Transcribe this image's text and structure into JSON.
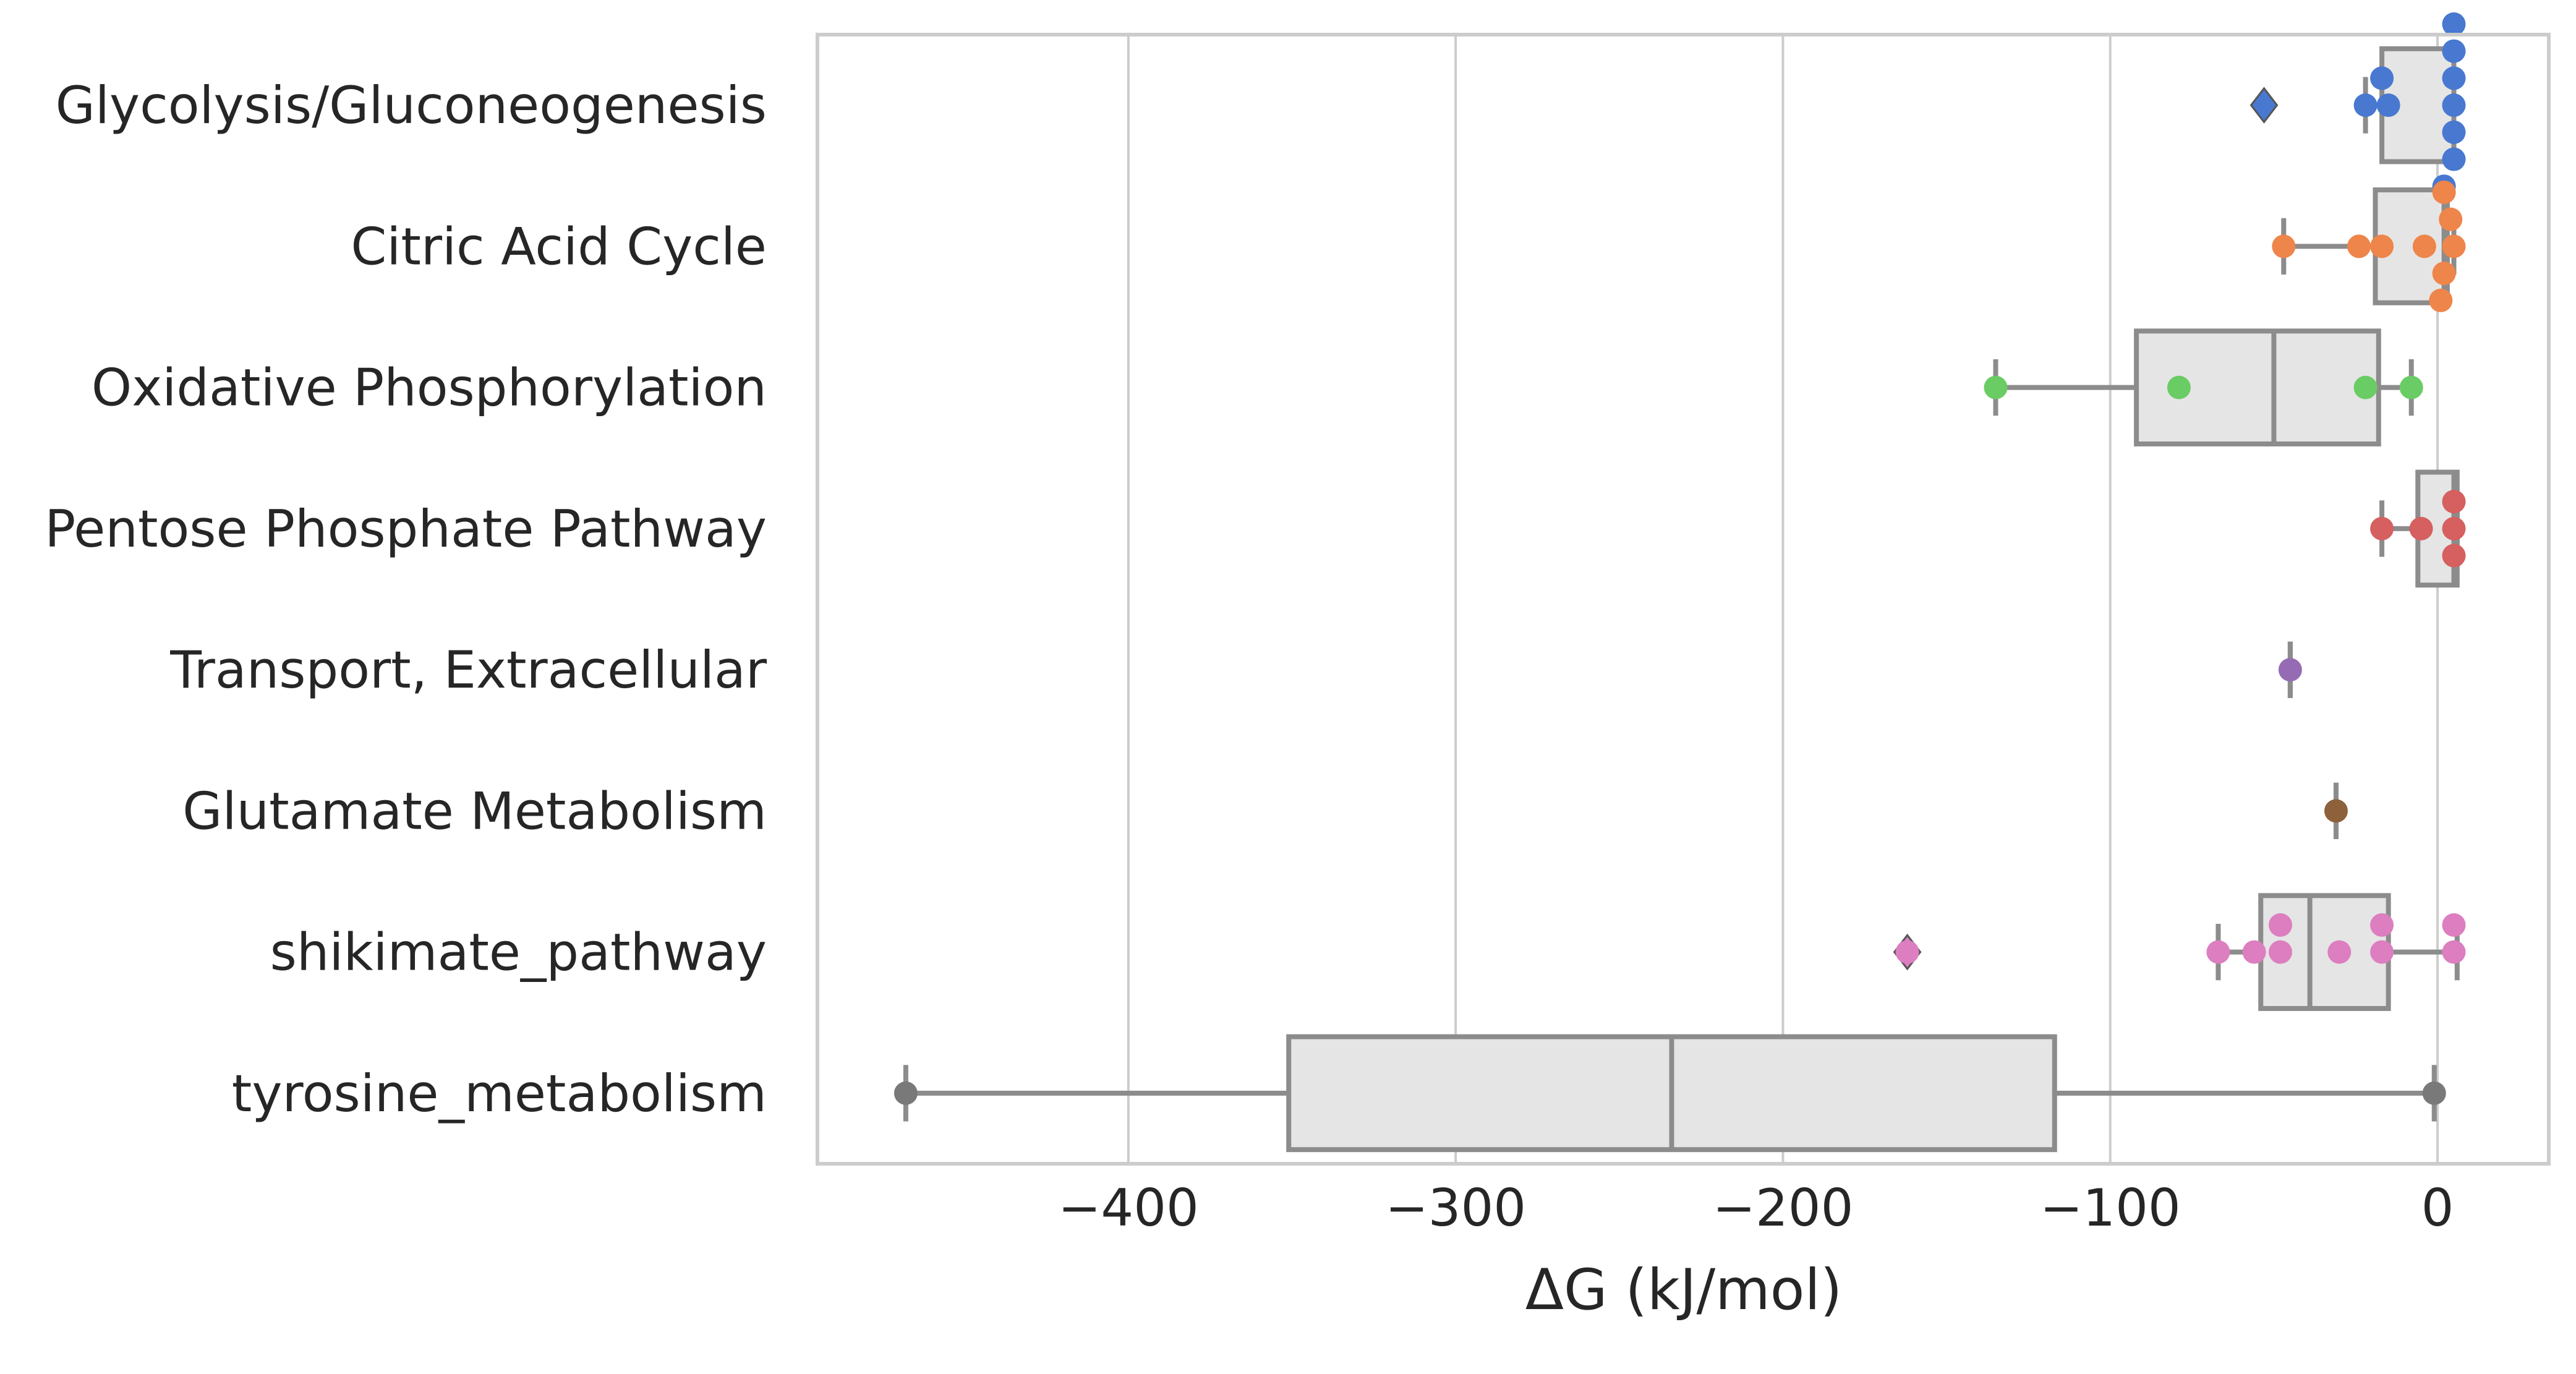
{
  "chart_data": {
    "type": "box",
    "xlabel": "ΔG (kJ/mol)",
    "xlim": [
      -495,
      34
    ],
    "xticks": [
      -400,
      -300,
      -200,
      -100,
      0
    ],
    "xtick_labels": [
      "−400",
      "−300",
      "−200",
      "−100",
      "0"
    ],
    "grid": "vertical",
    "box_fill": "#e5e5e5",
    "box_stroke": "#8c8c8c",
    "categories": [
      {
        "name": "Glycolysis/Gluconeogenesis",
        "color": "#4878d0",
        "box": {
          "whisker_low": -22,
          "q1": -17,
          "median": 5,
          "q3": 5,
          "whisker_high": 5
        },
        "outliers": [
          -53
        ],
        "points": [
          5,
          5,
          5,
          5,
          5,
          5,
          2,
          -15,
          -17,
          -22
        ]
      },
      {
        "name": "Citric Acid Cycle",
        "color": "#ee854a",
        "box": {
          "whisker_low": -47,
          "q1": -19,
          "median": 2,
          "q3": 3,
          "whisker_high": 5
        },
        "outliers": [],
        "points": [
          5,
          2,
          1,
          2,
          4,
          -4,
          -17,
          -24,
          -47
        ]
      },
      {
        "name": "Oxidative Phosphorylation",
        "color": "#6acc64",
        "box": {
          "whisker_low": -135,
          "q1": -92,
          "median": -50,
          "q3": -18,
          "whisker_high": -8
        },
        "outliers": [],
        "points": [
          -135,
          -79,
          -22,
          -8
        ]
      },
      {
        "name": "Pentose Phosphate Pathway",
        "color": "#d65f5f",
        "box": {
          "whisker_low": -17,
          "q1": -6,
          "median": 5,
          "q3": 6,
          "whisker_high": 6
        },
        "outliers": [],
        "points": [
          5,
          5,
          5,
          -5,
          -17
        ]
      },
      {
        "name": "Transport, Extracellular",
        "color": "#956cb4",
        "box": {
          "whisker_low": -45,
          "q1": -45,
          "median": -45,
          "q3": -45,
          "whisker_high": -45
        },
        "outliers": [],
        "points": [
          -45
        ]
      },
      {
        "name": "Glutamate Metabolism",
        "color": "#8c613c",
        "box": {
          "whisker_low": -31,
          "q1": -31,
          "median": -31,
          "q3": -31,
          "whisker_high": -31
        },
        "outliers": [],
        "points": [
          -31
        ]
      },
      {
        "name": "shikimate_pathway",
        "color": "#dc7ec0",
        "box": {
          "whisker_low": -67,
          "q1": -54,
          "median": -39,
          "q3": -15,
          "whisker_high": 6
        },
        "outliers": [
          -162
        ],
        "points": [
          -162,
          -67,
          -56,
          -48,
          -48,
          -30,
          -17,
          -17,
          5,
          5
        ]
      },
      {
        "name": "tyrosine_metabolism",
        "color": "#797979",
        "box": {
          "whisker_low": -468,
          "q1": -351,
          "median": -234,
          "q3": -117,
          "whisker_high": -1
        },
        "outliers": [],
        "points": [
          -468,
          -1
        ]
      }
    ]
  }
}
